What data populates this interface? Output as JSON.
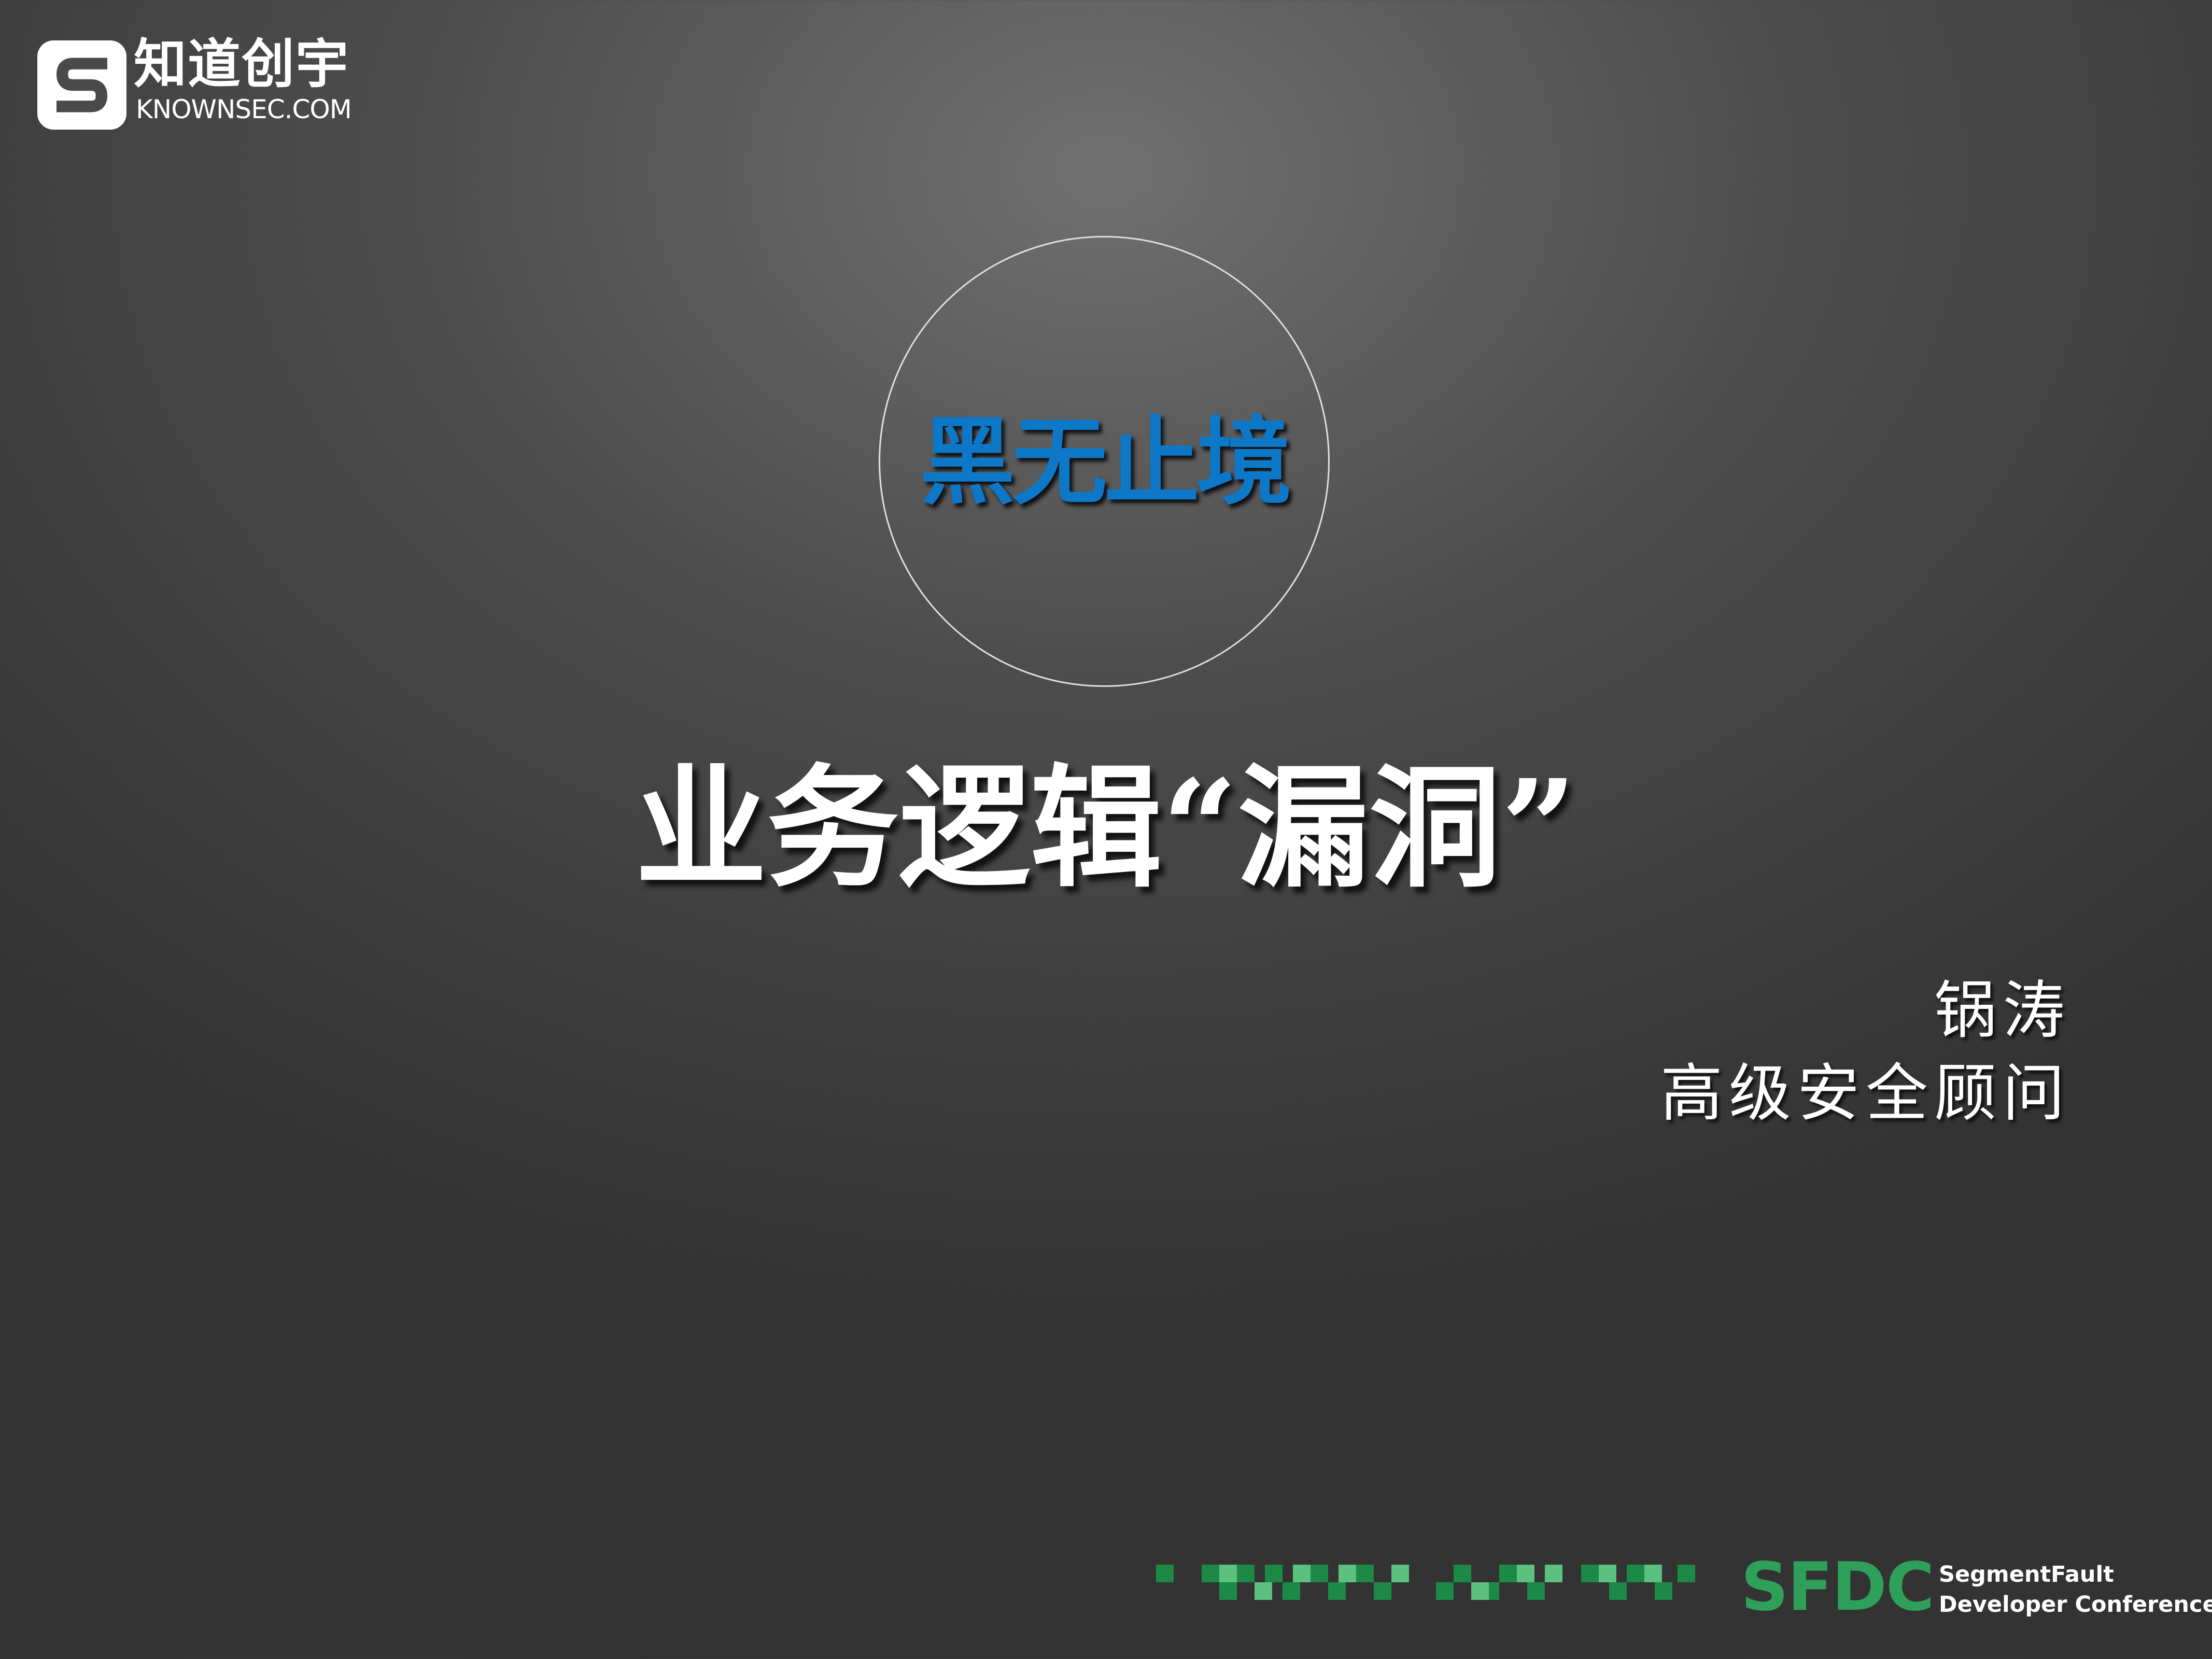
{
  "logo": {
    "name_cn": "知道创宇",
    "name_en": "KNOWNSEC.COM"
  },
  "tagline": "黑无止境",
  "title": "业务逻辑“漏洞”",
  "presenter": {
    "name": "锅涛",
    "role": "高级安全顾问"
  },
  "footer": {
    "sfdc_logo": "SFDC",
    "line1": "SegmentFault",
    "line2": "Developer Conference"
  },
  "colors": {
    "tagline": "#0e78c8",
    "sfdc_green": "#2ea05a",
    "strip_dark": "#1c8a46",
    "strip_light": "#5cc07e"
  }
}
